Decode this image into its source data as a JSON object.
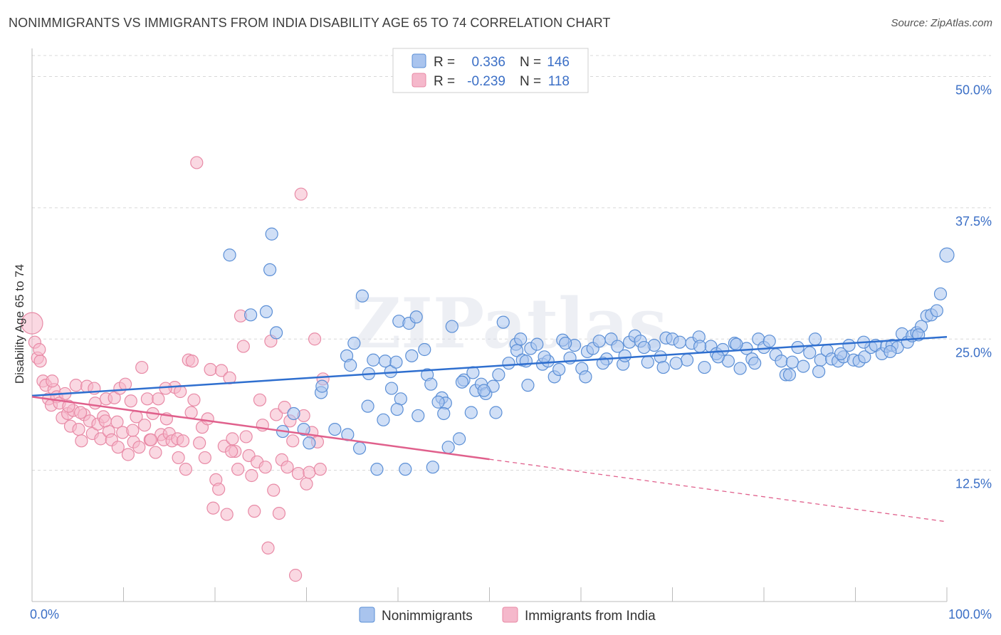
{
  "title": "NONIMMIGRANTS VS IMMIGRANTS FROM INDIA DISABILITY AGE 65 TO 74 CORRELATION CHART",
  "source": "Source: ZipAtlas.com",
  "watermark": "ZIPatlas",
  "colors": {
    "blue_fill": "#a9c4ee",
    "blue_stroke": "#5b8fd6",
    "blue_line": "#2f6fcf",
    "pink_fill": "#f5b8cb",
    "pink_stroke": "#e88aa6",
    "pink_line": "#e0608c",
    "grid": "#d8d8d8",
    "tick_text": "#3b6fc6"
  },
  "legend_top": {
    "rows": [
      {
        "r_label": "R =",
        "r_value": "0.336",
        "n_label": "N =",
        "n_value": "146"
      },
      {
        "r_label": "R =",
        "r_value": "-0.239",
        "n_label": "N =",
        "n_value": "118"
      }
    ]
  },
  "legend_bottom": {
    "items": [
      "Nonimmigrants",
      "Immigrants from India"
    ]
  },
  "chart_data": {
    "type": "scatter",
    "title": "NONIMMIGRANTS VS IMMIGRANTS FROM INDIA DISABILITY AGE 65 TO 74 CORRELATION CHART",
    "ylabel": "Disability Age 65 to 74",
    "xlabel": "",
    "xlim": [
      0,
      100
    ],
    "ylim": [
      0,
      52
    ],
    "x_tick_labels": [
      "0.0%",
      "100.0%"
    ],
    "y_ticks": [
      12.5,
      25.0,
      37.5,
      50.0
    ],
    "y_tick_labels": [
      "12.5%",
      "25.0%",
      "37.5%",
      "50.0%"
    ],
    "grid": true,
    "legend_position": "top-center",
    "series": [
      {
        "name": "Nonimmigrants",
        "R": 0.336,
        "N": 146,
        "trend": {
          "x": [
            0,
            100
          ],
          "y": [
            19.6,
            25.2
          ],
          "dashed_from": null
        },
        "points": [
          [
            21.6,
            33.0
          ],
          [
            26.2,
            35.0
          ],
          [
            26.0,
            31.6
          ],
          [
            25.6,
            27.6
          ],
          [
            23.9,
            27.3
          ],
          [
            36.1,
            29.1
          ],
          [
            35.2,
            24.6
          ],
          [
            34.4,
            23.4
          ],
          [
            37.3,
            23.0
          ],
          [
            36.8,
            21.7
          ],
          [
            38.6,
            22.9
          ],
          [
            39.2,
            21.9
          ],
          [
            39.8,
            22.8
          ],
          [
            40.1,
            26.7
          ],
          [
            40.3,
            19.3
          ],
          [
            39.9,
            18.3
          ],
          [
            41.2,
            26.5
          ],
          [
            42.0,
            27.1
          ],
          [
            41.5,
            23.4
          ],
          [
            42.2,
            17.7
          ],
          [
            42.9,
            24.0
          ],
          [
            43.2,
            21.6
          ],
          [
            43.6,
            20.7
          ],
          [
            44.8,
            19.4
          ],
          [
            45.2,
            18.9
          ],
          [
            45.9,
            26.2
          ],
          [
            45.0,
            17.9
          ],
          [
            45.5,
            14.7
          ],
          [
            46.7,
            15.5
          ],
          [
            47.2,
            21.1
          ],
          [
            48.2,
            21.8
          ],
          [
            48.5,
            20.1
          ],
          [
            49.1,
            20.7
          ],
          [
            49.6,
            19.8
          ],
          [
            50.4,
            20.5
          ],
          [
            50.7,
            18.0
          ],
          [
            51.5,
            26.6
          ],
          [
            52.1,
            22.7
          ],
          [
            52.9,
            24.5
          ],
          [
            53.0,
            23.9
          ],
          [
            53.6,
            23.0
          ],
          [
            54.0,
            22.9
          ],
          [
            54.5,
            24.1
          ],
          [
            55.2,
            24.5
          ],
          [
            55.8,
            22.6
          ],
          [
            56.4,
            22.9
          ],
          [
            57.1,
            21.4
          ],
          [
            57.6,
            22.1
          ],
          [
            58.0,
            24.9
          ],
          [
            58.8,
            23.2
          ],
          [
            59.3,
            24.4
          ],
          [
            60.1,
            22.2
          ],
          [
            60.7,
            23.8
          ],
          [
            61.3,
            24.1
          ],
          [
            62.0,
            24.8
          ],
          [
            62.8,
            23.1
          ],
          [
            63.3,
            25.0
          ],
          [
            64.0,
            24.3
          ],
          [
            64.6,
            22.6
          ],
          [
            65.3,
            24.7
          ],
          [
            65.9,
            25.3
          ],
          [
            66.5,
            24.8
          ],
          [
            67.3,
            22.8
          ],
          [
            68.0,
            24.4
          ],
          [
            68.7,
            23.3
          ],
          [
            69.3,
            25.1
          ],
          [
            70.0,
            25.0
          ],
          [
            70.8,
            24.7
          ],
          [
            71.6,
            23.0
          ],
          [
            72.1,
            24.6
          ],
          [
            72.9,
            25.2
          ],
          [
            73.5,
            22.3
          ],
          [
            74.2,
            24.3
          ],
          [
            74.8,
            23.6
          ],
          [
            75.5,
            24.0
          ],
          [
            76.1,
            22.9
          ],
          [
            76.8,
            24.6
          ],
          [
            77.4,
            22.2
          ],
          [
            78.1,
            24.1
          ],
          [
            78.7,
            23.1
          ],
          [
            79.4,
            25.0
          ],
          [
            80.0,
            24.2
          ],
          [
            80.6,
            24.8
          ],
          [
            81.3,
            23.5
          ],
          [
            81.9,
            22.9
          ],
          [
            82.4,
            21.6
          ],
          [
            83.1,
            22.8
          ],
          [
            83.7,
            24.2
          ],
          [
            84.3,
            22.4
          ],
          [
            85.0,
            23.7
          ],
          [
            85.6,
            25.0
          ],
          [
            86.2,
            23.0
          ],
          [
            86.9,
            23.9
          ],
          [
            87.4,
            23.1
          ],
          [
            88.1,
            22.9
          ],
          [
            88.7,
            23.3
          ],
          [
            89.3,
            24.4
          ],
          [
            89.8,
            23.0
          ],
          [
            90.4,
            22.9
          ],
          [
            91.0,
            23.3
          ],
          [
            91.7,
            24.2
          ],
          [
            92.2,
            24.4
          ],
          [
            92.9,
            23.6
          ],
          [
            93.4,
            24.3
          ],
          [
            94.0,
            24.4
          ],
          [
            94.6,
            24.2
          ],
          [
            95.1,
            25.5
          ],
          [
            95.7,
            24.7
          ],
          [
            96.2,
            25.3
          ],
          [
            96.7,
            25.6
          ],
          [
            97.2,
            26.2
          ],
          [
            97.8,
            27.2
          ],
          [
            98.3,
            27.3
          ],
          [
            98.9,
            27.7
          ],
          [
            99.3,
            29.3
          ],
          [
            100.0,
            33.0
          ],
          [
            53.4,
            25.0
          ],
          [
            27.4,
            16.2
          ],
          [
            28.6,
            17.9
          ],
          [
            29.7,
            16.4
          ],
          [
            30.3,
            15.1
          ],
          [
            31.6,
            19.9
          ],
          [
            33.1,
            16.4
          ],
          [
            34.5,
            15.9
          ],
          [
            35.8,
            14.6
          ],
          [
            36.7,
            18.6
          ],
          [
            37.7,
            12.6
          ],
          [
            38.4,
            17.3
          ],
          [
            40.8,
            12.6
          ],
          [
            43.8,
            12.8
          ],
          [
            47.0,
            20.9
          ],
          [
            49.4,
            20.1
          ],
          [
            51.0,
            21.6
          ],
          [
            54.2,
            20.6
          ],
          [
            56.0,
            23.3
          ],
          [
            60.5,
            21.4
          ],
          [
            62.4,
            22.7
          ],
          [
            66.9,
            24.2
          ],
          [
            70.4,
            22.7
          ],
          [
            73.0,
            24.3
          ],
          [
            75.0,
            23.3
          ],
          [
            79.0,
            22.7
          ],
          [
            82.8,
            21.6
          ],
          [
            86.0,
            21.9
          ],
          [
            88.4,
            23.6
          ],
          [
            90.9,
            24.7
          ],
          [
            93.8,
            23.8
          ],
          [
            96.9,
            25.4
          ],
          [
            26.7,
            25.6
          ],
          [
            31.7,
            20.5
          ],
          [
            34.8,
            22.5
          ],
          [
            39.3,
            20.3
          ],
          [
            44.4,
            19.0
          ],
          [
            48.0,
            18.0
          ],
          [
            58.3,
            24.6
          ],
          [
            64.8,
            23.4
          ],
          [
            69.0,
            22.3
          ],
          [
            77.0,
            24.5
          ]
        ]
      },
      {
        "name": "Immigrants from India",
        "R": -0.239,
        "N": 118,
        "trend": {
          "x": [
            0,
            100
          ],
          "y": [
            19.5,
            7.6
          ],
          "dashed_from": 50
        },
        "points": [
          [
            0.0,
            26.5
          ],
          [
            0.3,
            24.7
          ],
          [
            0.6,
            23.2
          ],
          [
            0.9,
            22.9
          ],
          [
            1.2,
            21.0
          ],
          [
            1.5,
            20.6
          ],
          [
            1.8,
            19.3
          ],
          [
            2.1,
            18.7
          ],
          [
            2.4,
            20.2
          ],
          [
            2.7,
            19.5
          ],
          [
            3.0,
            18.9
          ],
          [
            3.3,
            17.5
          ],
          [
            3.6,
            19.8
          ],
          [
            3.9,
            17.9
          ],
          [
            4.2,
            16.7
          ],
          [
            4.5,
            18.2
          ],
          [
            4.8,
            20.6
          ],
          [
            5.1,
            16.4
          ],
          [
            5.4,
            15.3
          ],
          [
            5.7,
            17.8
          ],
          [
            6.0,
            20.5
          ],
          [
            6.3,
            17.2
          ],
          [
            6.6,
            16.0
          ],
          [
            6.9,
            18.9
          ],
          [
            7.2,
            16.9
          ],
          [
            7.5,
            15.5
          ],
          [
            7.8,
            17.6
          ],
          [
            8.1,
            19.3
          ],
          [
            8.4,
            16.2
          ],
          [
            8.7,
            15.4
          ],
          [
            9.0,
            19.4
          ],
          [
            9.3,
            17.1
          ],
          [
            9.6,
            20.3
          ],
          [
            9.9,
            16.1
          ],
          [
            10.2,
            20.7
          ],
          [
            10.5,
            14.0
          ],
          [
            10.8,
            19.1
          ],
          [
            11.1,
            15.2
          ],
          [
            11.4,
            17.6
          ],
          [
            11.7,
            14.7
          ],
          [
            12.0,
            22.3
          ],
          [
            12.3,
            16.8
          ],
          [
            12.6,
            19.3
          ],
          [
            12.9,
            15.4
          ],
          [
            13.2,
            17.9
          ],
          [
            13.5,
            14.2
          ],
          [
            13.8,
            19.3
          ],
          [
            14.1,
            15.9
          ],
          [
            14.4,
            15.4
          ],
          [
            14.7,
            17.4
          ],
          [
            15.0,
            16.0
          ],
          [
            15.3,
            15.3
          ],
          [
            15.6,
            20.4
          ],
          [
            15.9,
            15.5
          ],
          [
            16.2,
            20.0
          ],
          [
            16.5,
            15.3
          ],
          [
            16.8,
            12.6
          ],
          [
            17.1,
            23.0
          ],
          [
            17.4,
            18.0
          ],
          [
            17.7,
            19.2
          ],
          [
            18.0,
            41.8
          ],
          [
            18.3,
            15.1
          ],
          [
            18.6,
            16.6
          ],
          [
            18.9,
            13.7
          ],
          [
            19.2,
            17.4
          ],
          [
            19.5,
            22.1
          ],
          [
            19.8,
            8.9
          ],
          [
            20.1,
            11.6
          ],
          [
            20.4,
            10.7
          ],
          [
            20.7,
            22.0
          ],
          [
            21.0,
            14.8
          ],
          [
            21.3,
            8.3
          ],
          [
            21.6,
            21.3
          ],
          [
            21.9,
            15.5
          ],
          [
            22.2,
            14.3
          ],
          [
            22.5,
            12.6
          ],
          [
            22.8,
            27.2
          ],
          [
            23.1,
            24.3
          ],
          [
            23.4,
            15.7
          ],
          [
            23.7,
            13.9
          ],
          [
            24.0,
            12.0
          ],
          [
            24.3,
            8.6
          ],
          [
            24.6,
            13.3
          ],
          [
            24.9,
            19.2
          ],
          [
            25.2,
            16.8
          ],
          [
            25.5,
            12.8
          ],
          [
            25.8,
            5.1
          ],
          [
            26.1,
            24.8
          ],
          [
            26.4,
            10.6
          ],
          [
            26.7,
            17.8
          ],
          [
            27.0,
            8.4
          ],
          [
            27.3,
            13.5
          ],
          [
            27.6,
            18.5
          ],
          [
            27.9,
            12.8
          ],
          [
            28.2,
            17.2
          ],
          [
            28.5,
            15.3
          ],
          [
            28.8,
            2.5
          ],
          [
            29.1,
            12.2
          ],
          [
            29.4,
            38.8
          ],
          [
            29.7,
            17.7
          ],
          [
            30.0,
            11.2
          ],
          [
            30.3,
            12.3
          ],
          [
            30.6,
            16.1
          ],
          [
            30.9,
            25.0
          ],
          [
            31.2,
            15.2
          ],
          [
            31.5,
            12.6
          ],
          [
            31.8,
            21.2
          ],
          [
            4.0,
            18.6
          ],
          [
            6.8,
            20.3
          ],
          [
            9.4,
            14.7
          ],
          [
            14.6,
            20.3
          ],
          [
            17.5,
            22.9
          ],
          [
            21.8,
            14.3
          ],
          [
            0.8,
            24.0
          ],
          [
            2.2,
            21.0
          ],
          [
            5.3,
            18.0
          ],
          [
            8.0,
            17.2
          ],
          [
            11.0,
            16.3
          ],
          [
            13.0,
            15.4
          ],
          [
            16.0,
            13.7
          ]
        ]
      }
    ]
  }
}
